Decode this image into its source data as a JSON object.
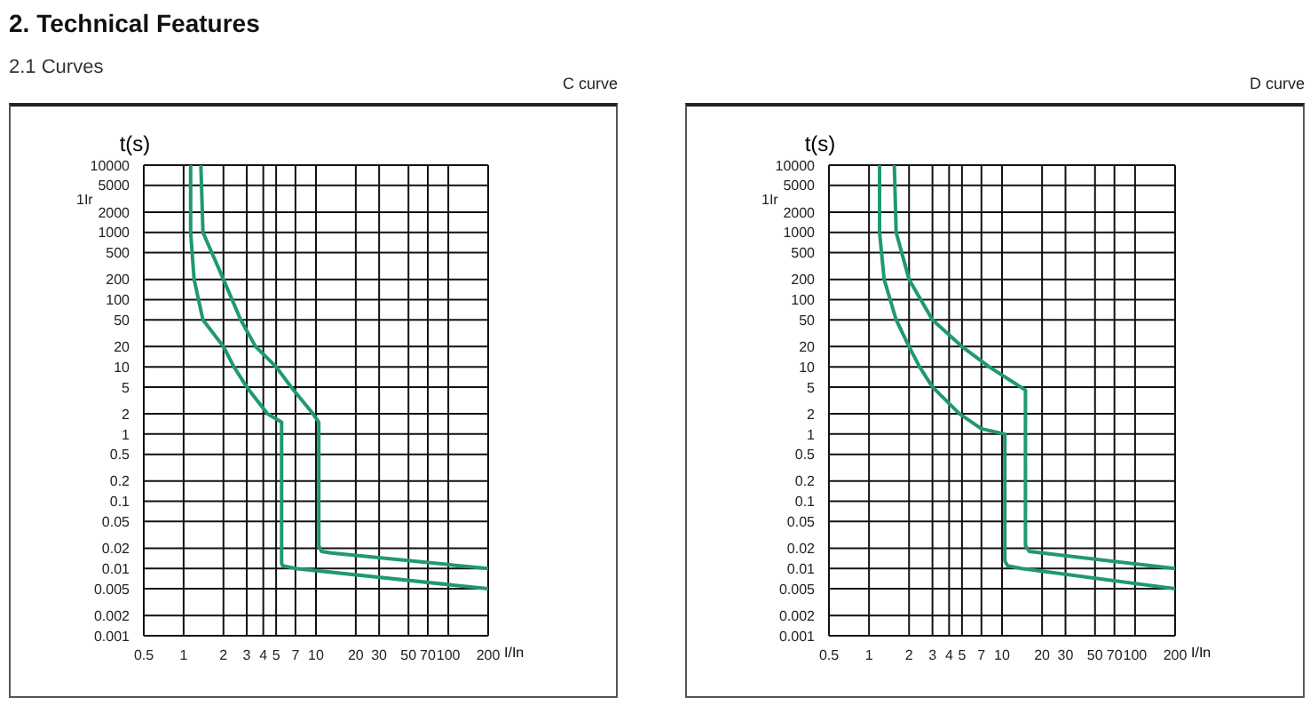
{
  "chart_data": [
    {
      "type": "line",
      "title": "2. Technical Features",
      "subtitle": "2.1 Curves",
      "annotations": [
        "C curve",
        "1Ir"
      ],
      "xlabel": "I/In",
      "ylabel": "t(s)",
      "log": "xy",
      "grid": true,
      "xlim": [
        0.5,
        200
      ],
      "ylim": [
        0.001,
        10000
      ],
      "xticks": [
        0.5,
        1,
        2,
        3,
        4,
        5,
        7,
        10,
        20,
        30,
        50,
        70,
        100,
        200
      ],
      "yticks": [
        0.001,
        0.002,
        0.005,
        0.01,
        0.02,
        0.05,
        0.1,
        0.2,
        0.5,
        1,
        2,
        5,
        10,
        20,
        50,
        100,
        200,
        500,
        1000,
        2000,
        5000,
        10000
      ],
      "series": [
        {
          "color": "#1f9a6b",
          "x": [
            1.13,
            1.13,
            1.2,
            1.4,
            2,
            2.4,
            3,
            4.3,
            5.5,
            5.5,
            5.6,
            7,
            200
          ],
          "values": [
            10000,
            1000,
            200,
            50,
            20,
            10,
            5,
            2,
            1.5,
            0.012,
            0.011,
            0.01,
            0.005
          ]
        },
        {
          "color": "#1f9a6b",
          "x": [
            1.35,
            1.4,
            2,
            2.7,
            3.5,
            5,
            6.5,
            9.5,
            10.5,
            10.5,
            11,
            13,
            200
          ],
          "values": [
            10000,
            1000,
            200,
            50,
            20,
            10,
            5,
            2,
            1.5,
            0.022,
            0.018,
            0.017,
            0.01
          ]
        }
      ]
    },
    {
      "type": "line",
      "annotations": [
        "D curve",
        "1Ir"
      ],
      "xlabel": "I/In",
      "ylabel": "t(s)",
      "log": "xy",
      "grid": true,
      "xlim": [
        0.5,
        200
      ],
      "ylim": [
        0.001,
        10000
      ],
      "xticks": [
        0.5,
        1,
        2,
        3,
        4,
        5,
        7,
        10,
        20,
        30,
        50,
        70,
        100,
        200
      ],
      "yticks": [
        0.001,
        0.002,
        0.005,
        0.01,
        0.02,
        0.05,
        0.1,
        0.2,
        0.5,
        1,
        2,
        5,
        10,
        20,
        50,
        100,
        200,
        500,
        1000,
        2000,
        5000,
        10000
      ],
      "series": [
        {
          "color": "#1f9a6b",
          "x": [
            1.2,
            1.2,
            1.3,
            1.6,
            2,
            2.4,
            3,
            4.8,
            7,
            10.5,
            10.5,
            11,
            14,
            200
          ],
          "values": [
            10000,
            1000,
            200,
            50,
            20,
            10,
            5,
            2,
            1.2,
            1,
            0.013,
            0.011,
            0.01,
            0.005
          ]
        },
        {
          "color": "#1f9a6b",
          "x": [
            1.55,
            1.6,
            2,
            3,
            5,
            8,
            12,
            15,
            15,
            16,
            20,
            200
          ],
          "values": [
            10000,
            1000,
            200,
            50,
            20,
            10,
            6,
            4.5,
            0.022,
            0.018,
            0.017,
            0.01
          ]
        }
      ]
    }
  ]
}
